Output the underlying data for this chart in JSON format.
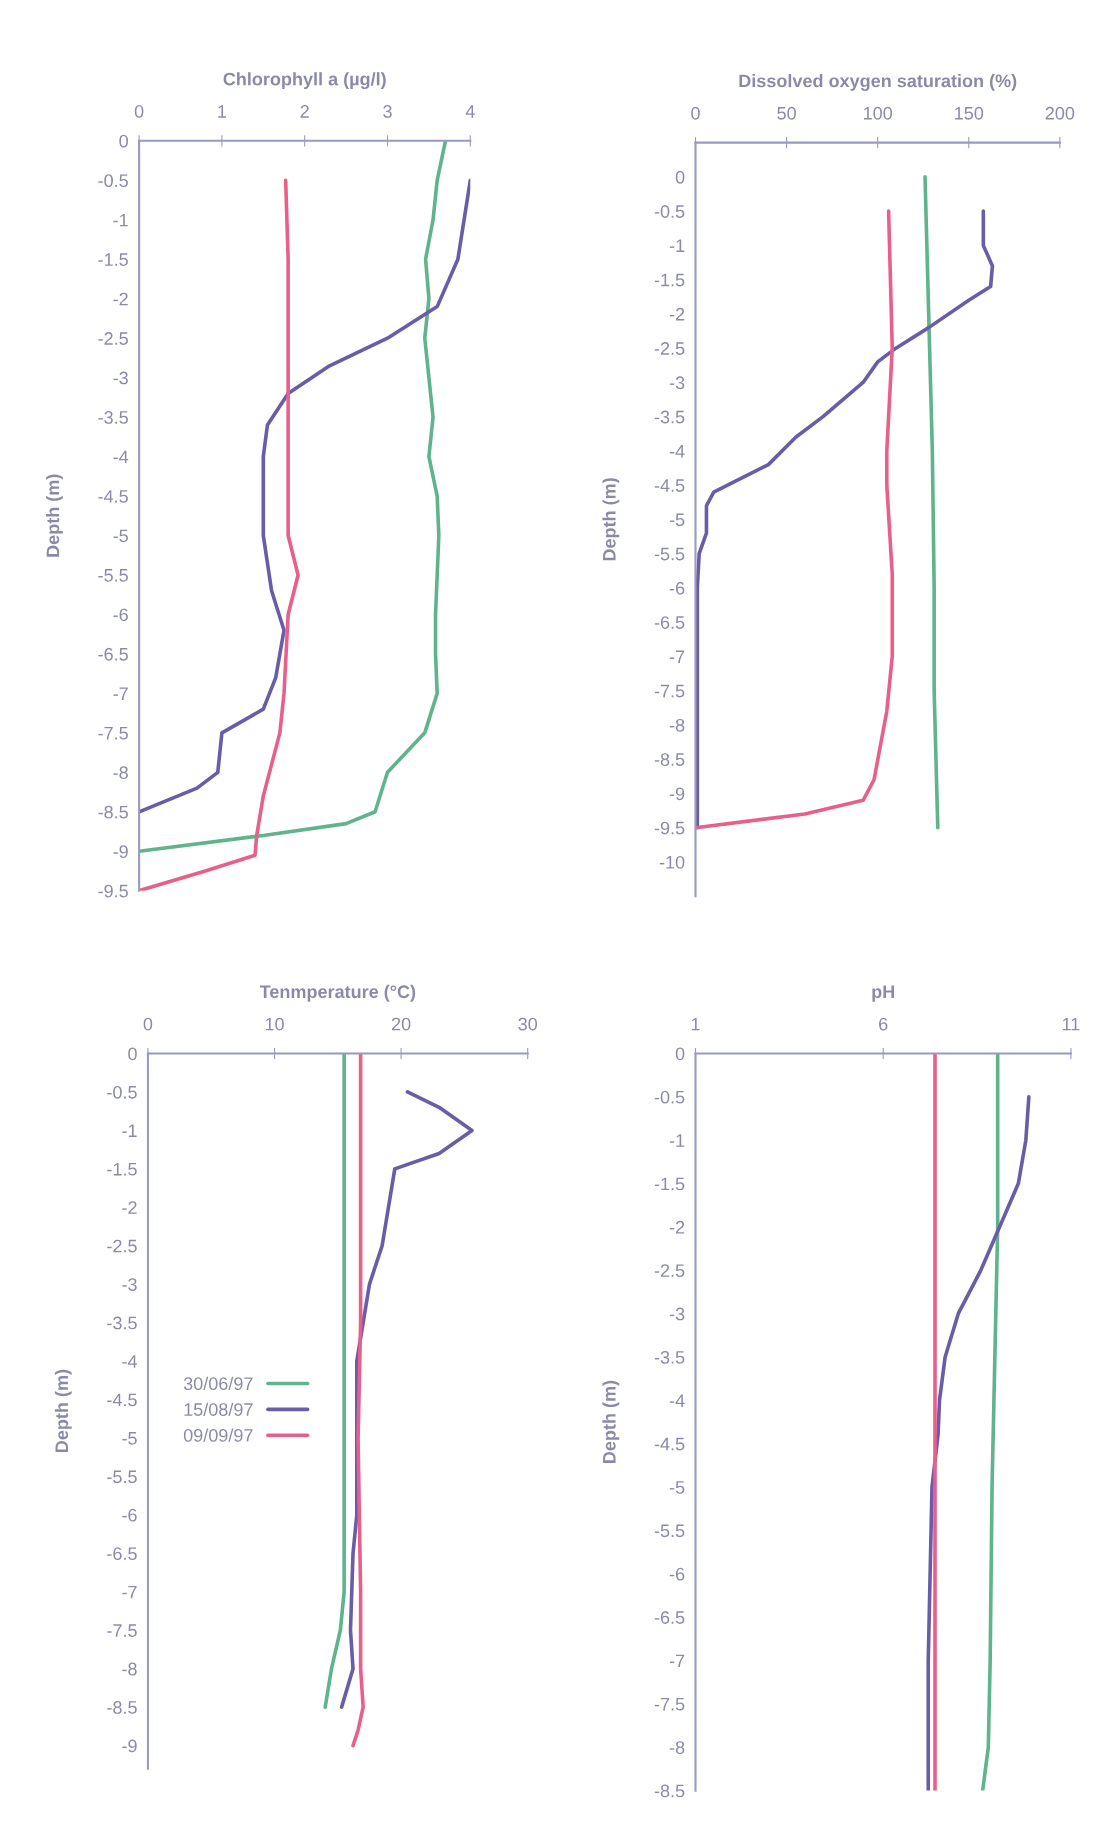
{
  "chart_data": [
    {
      "type": "line",
      "title": "Chlorophyll a (µg/l)",
      "ylabel": "Depth (m)",
      "xlim": [
        0,
        4
      ],
      "xticks": [
        0,
        1,
        2,
        3,
        4
      ],
      "ylim": [
        -9.5,
        0
      ],
      "yticks": [
        0,
        -0.5,
        -1,
        -1.5,
        -2,
        -2.5,
        -3,
        -3.5,
        -4,
        -4.5,
        -5,
        -5.5,
        -6,
        -6.5,
        -7,
        -7.5,
        -8,
        -8.5,
        -9,
        -9.5
      ],
      "grid": false,
      "line_style": "solid",
      "marker": "none",
      "series": [
        {
          "color": "#5fb48e",
          "x": [
            3.7,
            3.6,
            3.55,
            3.46,
            3.5,
            3.45,
            3.5,
            3.55,
            3.5,
            3.6,
            3.62,
            3.6,
            3.58,
            3.58,
            3.6,
            3.45,
            3.0,
            2.85,
            2.5,
            1.5,
            0
          ],
          "values": [
            0,
            -0.5,
            -1,
            -1.5,
            -2,
            -2.5,
            -3,
            -3.5,
            -4,
            -4.5,
            -5,
            -5.5,
            -6,
            -6.5,
            -7,
            -7.5,
            -8,
            -8.5,
            -8.65,
            -8.8,
            -9
          ]
        },
        {
          "color": "#6a5ca8",
          "x": [
            4,
            3.85,
            3.6,
            3.0,
            2.3,
            1.8,
            1.55,
            1.5,
            1.5,
            1.6,
            1.75,
            1.65,
            1.5,
            1.0,
            0.95,
            0.7,
            0
          ],
          "values": [
            -0.5,
            -1.5,
            -2.1,
            -2.5,
            -2.85,
            -3.2,
            -3.6,
            -4,
            -5,
            -5.7,
            -6.2,
            -6.8,
            -7.2,
            -7.5,
            -8,
            -8.2,
            -8.5
          ]
        },
        {
          "color": "#e8608a",
          "x": [
            1.77,
            1.8,
            1.8,
            1.92,
            1.8,
            1.75,
            1.7,
            1.5,
            1.42,
            1.4,
            0.8,
            0
          ],
          "values": [
            -0.5,
            -1.5,
            -5,
            -5.5,
            -6,
            -7,
            -7.5,
            -8.3,
            -8.8,
            -9.05,
            -9.25,
            -9.5
          ]
        }
      ]
    },
    {
      "type": "line",
      "title": "Dissolved oxygen saturation (%)",
      "ylabel": "Depth (m)",
      "xlim": [
        0,
        200
      ],
      "xticks": [
        0,
        50,
        100,
        150,
        200
      ],
      "ylim": [
        -10.5,
        0.5
      ],
      "yticks": [
        0,
        -0.5,
        -1,
        -1.5,
        -2,
        -2.5,
        -3,
        -3.5,
        -4,
        -4.5,
        -5,
        -5.5,
        -6,
        -6.5,
        -7,
        -7.5,
        -8,
        -8.5,
        -9,
        -9.5,
        -10
      ],
      "grid": false,
      "line_style": "solid",
      "marker": "none",
      "series": [
        {
          "color": "#5fb48e",
          "x": [
            126,
            128,
            130,
            131,
            131,
            132,
            133
          ],
          "values": [
            0,
            -2,
            -4,
            -6,
            -7.5,
            -8.5,
            -9.5
          ]
        },
        {
          "color": "#6a5ca8",
          "x": [
            158,
            158,
            163,
            162,
            150,
            128,
            110,
            100,
            92,
            70,
            55,
            40,
            10,
            6,
            6,
            2,
            1,
            1
          ],
          "values": [
            -0.5,
            -1,
            -1.3,
            -1.6,
            -1.8,
            -2.2,
            -2.5,
            -2.7,
            -3,
            -3.5,
            -3.8,
            -4.2,
            -4.6,
            -4.8,
            -5.2,
            -5.5,
            -6,
            -9.5
          ]
        },
        {
          "color": "#e8608a",
          "x": [
            106,
            108,
            105,
            105,
            108,
            108,
            105,
            98,
            92,
            60,
            0
          ],
          "values": [
            -0.5,
            -2.5,
            -4,
            -4.5,
            -5.8,
            -7,
            -7.8,
            -8.8,
            -9.1,
            -9.3,
            -9.5
          ]
        }
      ]
    },
    {
      "type": "line",
      "title": "Tenmperature (°C)",
      "ylabel": "Depth (m)",
      "xlim": [
        0,
        30
      ],
      "xticks": [
        0,
        10,
        20,
        30
      ],
      "ylim": [
        -9.3,
        0
      ],
      "yticks": [
        0,
        -0.5,
        -1,
        -1.5,
        -2,
        -2.5,
        -3,
        -3.5,
        -4,
        -4.5,
        -5,
        -5.5,
        -6,
        -6.5,
        -7,
        -7.5,
        -8,
        -8.5,
        -9
      ],
      "grid": false,
      "legend": "left",
      "line_style": "solid",
      "marker": "none",
      "series": [
        {
          "name": "30/06/97",
          "color": "#5fb48e",
          "x": [
            15.5,
            15.5,
            15.2,
            14.5,
            14
          ],
          "values": [
            0,
            -7,
            -7.5,
            -8,
            -8.5
          ]
        },
        {
          "name": "15/08/97",
          "color": "#6a5ca8",
          "x": [
            20.5,
            23,
            25.6,
            23,
            19.5,
            19,
            18.5,
            17.5,
            17,
            16.5,
            16.5,
            16.5,
            16.2,
            16,
            16.2,
            15.3
          ],
          "values": [
            -0.5,
            -0.7,
            -1,
            -1.3,
            -1.5,
            -2,
            -2.5,
            -3,
            -3.5,
            -4,
            -5,
            -6,
            -6.5,
            -7.5,
            -8,
            -8.5
          ]
        },
        {
          "name": "09/09/97",
          "color": "#e8608a",
          "x": [
            16.8,
            16.8,
            16.6,
            16.8,
            16.8,
            17,
            16.6,
            16.2
          ],
          "values": [
            0,
            -3.5,
            -5,
            -7,
            -8,
            -8.5,
            -8.8,
            -9
          ]
        }
      ]
    },
    {
      "type": "line",
      "title": "pH",
      "ylabel": "Depth (m)",
      "xlim": [
        1,
        11
      ],
      "xticks": [
        1,
        6,
        11
      ],
      "ylim": [
        -8.5,
        0
      ],
      "yticks": [
        0,
        -0.5,
        -1,
        -1.5,
        -2,
        -2.5,
        -3,
        -3.5,
        -4,
        -4.5,
        -5,
        -5.5,
        -6,
        -6.5,
        -7,
        -7.5,
        -8,
        -8.5
      ],
      "grid": false,
      "line_style": "solid",
      "marker": "none",
      "series": [
        {
          "color": "#5fb48e",
          "x": [
            9.05,
            9.05,
            9.0,
            8.9,
            8.85,
            8.8,
            8.65
          ],
          "values": [
            0,
            -2,
            -3,
            -5,
            -7,
            -8,
            -8.5
          ]
        },
        {
          "color": "#6a5ca8",
          "x": [
            9.88,
            9.8,
            9.6,
            9.1,
            8.6,
            8.0,
            7.65,
            7.5,
            7.46,
            7.3,
            7.25,
            7.2,
            7.2
          ],
          "values": [
            -0.5,
            -1,
            -1.5,
            -2,
            -2.5,
            -3,
            -3.5,
            -4,
            -4.4,
            -5,
            -6,
            -7,
            -8.5
          ]
        },
        {
          "color": "#e8608a",
          "x": [
            7.38,
            7.38
          ],
          "values": [
            0,
            -8.5
          ]
        }
      ]
    }
  ]
}
